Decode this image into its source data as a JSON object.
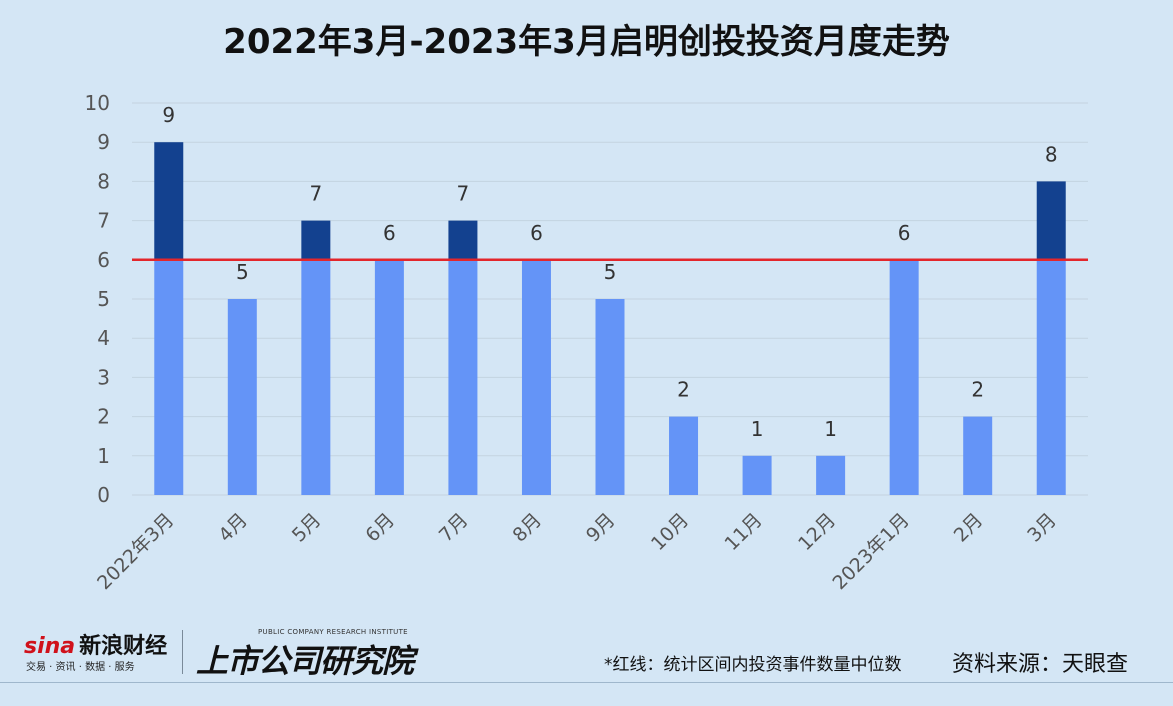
{
  "title": "2022年3月-2023年3月启明创投投资月度走势",
  "chart_data": {
    "type": "bar",
    "categories": [
      "2022年3月",
      "4月",
      "5月",
      "6月",
      "7月",
      "8月",
      "9月",
      "10月",
      "11月",
      "12月",
      "2023年1月",
      "2月",
      "3月"
    ],
    "values": [
      9,
      5,
      7,
      6,
      7,
      6,
      5,
      2,
      1,
      1,
      6,
      2,
      8
    ],
    "ylim": [
      0,
      10
    ],
    "yticks": [
      0,
      1,
      2,
      3,
      4,
      5,
      6,
      7,
      8,
      9,
      10
    ],
    "grid": true,
    "median_line": 6,
    "colors": {
      "base": "#6494f7",
      "above_median": "#13418f",
      "median_line": "#e3262b",
      "gridline": "#c3d3e0",
      "axis_text": "#555555",
      "label_text": "#333333"
    }
  },
  "footer": {
    "note": "*红线：统计区间内投资事件数量中位数",
    "source": "资料来源：天眼查",
    "sina_logo_en": "sina",
    "sina_logo_cn": "新浪财经",
    "sina_logo_sub": "交易 · 资讯 · 数据 · 服务",
    "research_logo_tagline": "PUBLIC COMPANY RESEARCH INSTITUTE",
    "research_logo_name": "上市公司研究院"
  }
}
